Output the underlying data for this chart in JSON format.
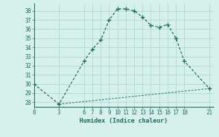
{
  "line1_x": [
    0,
    3,
    6,
    7,
    8,
    9,
    10,
    11,
    12,
    13,
    14,
    15,
    16,
    17,
    18,
    21
  ],
  "line1_y": [
    30.0,
    27.8,
    32.5,
    33.8,
    34.8,
    37.0,
    38.2,
    38.2,
    38.0,
    37.3,
    36.4,
    36.2,
    36.5,
    35.0,
    32.5,
    29.5
  ],
  "line2_x": [
    3,
    21
  ],
  "line2_y": [
    27.8,
    29.5
  ],
  "line_color": "#1a6b5e",
  "bg_color": "#d6f0ec",
  "grid_color": "#afd8d0",
  "xlabel": "Humidex (Indice chaleur)",
  "xticks": [
    0,
    3,
    6,
    7,
    8,
    9,
    10,
    11,
    12,
    13,
    14,
    15,
    16,
    17,
    18,
    21
  ],
  "yticks": [
    28,
    29,
    30,
    31,
    32,
    33,
    34,
    35,
    36,
    37,
    38
  ],
  "ylim": [
    27.5,
    38.8
  ],
  "xlim": [
    0,
    21.5
  ]
}
